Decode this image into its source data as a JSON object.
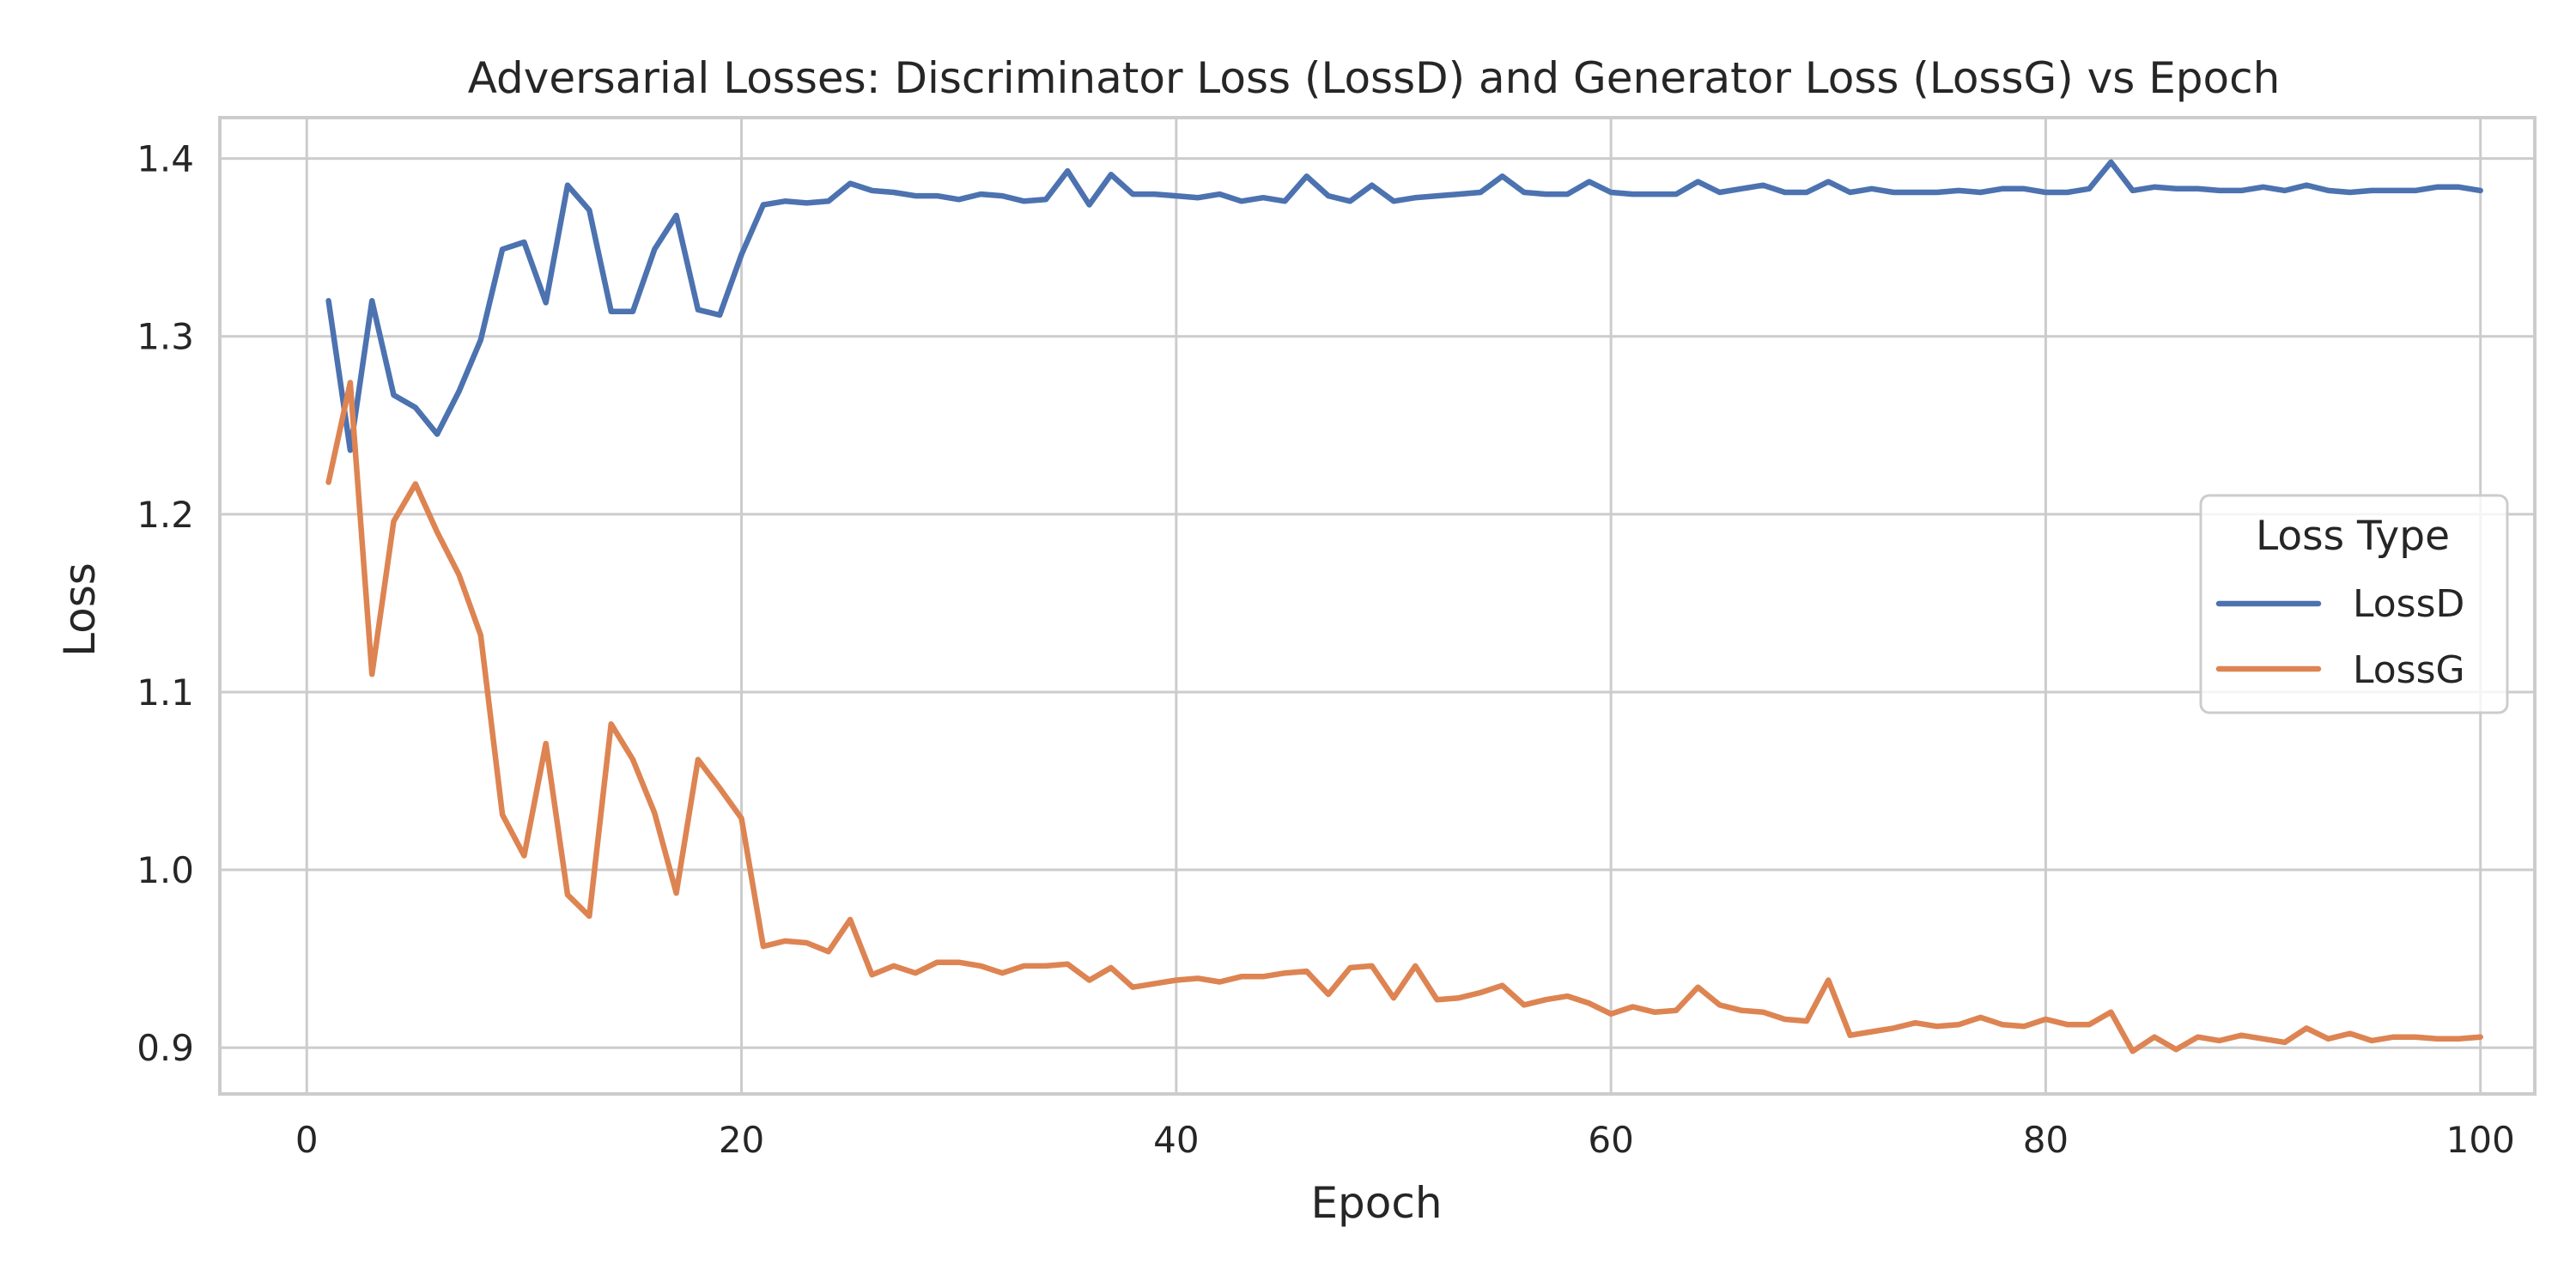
{
  "chart_data": {
    "type": "line",
    "title": "Adversarial Losses: Discriminator Loss (LossD) and Generator Loss (LossG) vs Epoch",
    "xlabel": "Epoch",
    "ylabel": "Loss",
    "xlim": [
      -4,
      102.5
    ],
    "ylim": [
      0.874,
      1.423
    ],
    "xticks": [
      0,
      20,
      40,
      60,
      80,
      100
    ],
    "yticks": [
      0.9,
      1.0,
      1.1,
      1.2,
      1.3,
      1.4
    ],
    "xtick_labels": [
      "0",
      "20",
      "40",
      "60",
      "80",
      "100"
    ],
    "ytick_labels": [
      "0.9",
      "1.0",
      "1.1",
      "1.2",
      "1.3",
      "1.4"
    ],
    "grid": true,
    "legend": {
      "title": "Loss Type",
      "position": "right"
    },
    "x": [
      1,
      2,
      3,
      4,
      5,
      6,
      7,
      8,
      9,
      10,
      11,
      12,
      13,
      14,
      15,
      16,
      17,
      18,
      19,
      20,
      21,
      22,
      23,
      24,
      25,
      26,
      27,
      28,
      29,
      30,
      31,
      32,
      33,
      34,
      35,
      36,
      37,
      38,
      39,
      40,
      41,
      42,
      43,
      44,
      45,
      46,
      47,
      48,
      49,
      50,
      51,
      52,
      53,
      54,
      55,
      56,
      57,
      58,
      59,
      60,
      61,
      62,
      63,
      64,
      65,
      66,
      67,
      68,
      69,
      70,
      71,
      72,
      73,
      74,
      75,
      76,
      77,
      78,
      79,
      80,
      81,
      82,
      83,
      84,
      85,
      86,
      87,
      88,
      89,
      90,
      91,
      92,
      93,
      94,
      95,
      96,
      97,
      98,
      99,
      100
    ],
    "series": [
      {
        "name": "LossD",
        "color": "#4c72b0",
        "values": [
          1.32,
          1.236,
          1.32,
          1.267,
          1.26,
          1.245,
          1.269,
          1.298,
          1.349,
          1.353,
          1.319,
          1.385,
          1.371,
          1.314,
          1.314,
          1.349,
          1.368,
          1.315,
          1.312,
          1.346,
          1.374,
          1.376,
          1.375,
          1.376,
          1.386,
          1.382,
          1.381,
          1.379,
          1.379,
          1.377,
          1.38,
          1.379,
          1.376,
          1.377,
          1.393,
          1.374,
          1.391,
          1.38,
          1.38,
          1.379,
          1.378,
          1.38,
          1.376,
          1.378,
          1.376,
          1.39,
          1.379,
          1.376,
          1.385,
          1.376,
          1.378,
          1.379,
          1.38,
          1.381,
          1.39,
          1.381,
          1.38,
          1.38,
          1.387,
          1.381,
          1.38,
          1.38,
          1.38,
          1.387,
          1.381,
          1.383,
          1.385,
          1.381,
          1.381,
          1.387,
          1.381,
          1.383,
          1.381,
          1.381,
          1.381,
          1.382,
          1.381,
          1.383,
          1.383,
          1.381,
          1.381,
          1.383,
          1.398,
          1.382,
          1.384,
          1.383,
          1.383,
          1.382,
          1.382,
          1.384,
          1.382,
          1.385,
          1.382,
          1.381,
          1.382,
          1.382,
          1.382,
          1.384,
          1.384,
          1.382
        ]
      },
      {
        "name": "LossG",
        "color": "#dd8452",
        "values": [
          1.218,
          1.274,
          1.11,
          1.196,
          1.217,
          1.19,
          1.166,
          1.132,
          1.031,
          1.008,
          1.071,
          0.986,
          0.974,
          1.082,
          1.062,
          1.032,
          0.987,
          1.062,
          1.046,
          1.029,
          0.957,
          0.96,
          0.959,
          0.954,
          0.972,
          0.941,
          0.946,
          0.942,
          0.948,
          0.948,
          0.946,
          0.942,
          0.946,
          0.946,
          0.947,
          0.938,
          0.945,
          0.934,
          0.936,
          0.938,
          0.939,
          0.937,
          0.94,
          0.94,
          0.942,
          0.943,
          0.93,
          0.945,
          0.946,
          0.928,
          0.946,
          0.927,
          0.928,
          0.931,
          0.935,
          0.924,
          0.927,
          0.929,
          0.925,
          0.919,
          0.923,
          0.92,
          0.921,
          0.934,
          0.924,
          0.921,
          0.92,
          0.916,
          0.915,
          0.938,
          0.907,
          0.909,
          0.911,
          0.914,
          0.912,
          0.913,
          0.917,
          0.913,
          0.912,
          0.916,
          0.913,
          0.913,
          0.92,
          0.898,
          0.906,
          0.899,
          0.906,
          0.904,
          0.907,
          0.905,
          0.903,
          0.911,
          0.905,
          0.908,
          0.904,
          0.906,
          0.906,
          0.905,
          0.905,
          0.906
        ]
      }
    ]
  }
}
